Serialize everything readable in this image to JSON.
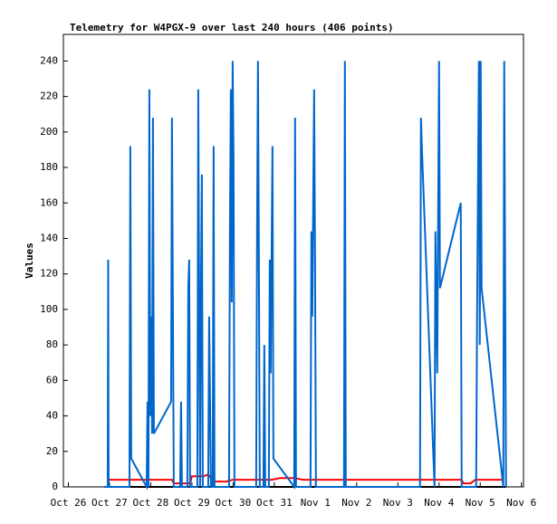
{
  "chart_data": {
    "type": "line",
    "title": "Telemetry for W4PGX-9 over last 240 hours (406 points)",
    "y_label": "Values",
    "xlim": [
      -0.12,
      11.05
    ],
    "xticks": [
      {
        "value": 0,
        "label": "Oct 26"
      },
      {
        "value": 1,
        "label": "Oct 27"
      },
      {
        "value": 2,
        "label": "Oct 28"
      },
      {
        "value": 3,
        "label": "Oct 29"
      },
      {
        "value": 4,
        "label": "Oct 30"
      },
      {
        "value": 5,
        "label": "Oct 31"
      },
      {
        "value": 6,
        "label": "Nov 1"
      },
      {
        "value": 7,
        "label": "Nov 2"
      },
      {
        "value": 8,
        "label": "Nov 3"
      },
      {
        "value": 9,
        "label": "Nov 4"
      },
      {
        "value": 10,
        "label": "Nov 5"
      },
      {
        "value": 11,
        "label": "Nov 6"
      }
    ],
    "ylim": [
      0,
      255
    ],
    "yticks": [
      0,
      20,
      40,
      60,
      80,
      100,
      120,
      140,
      160,
      180,
      200,
      220,
      240
    ],
    "series": [
      {
        "color": "#000000",
        "x": [
          0.868,
          10.626
        ],
        "values": [
          0,
          0
        ]
      },
      {
        "color": "#ff0000",
        "x": [
          0.956,
          2.516,
          2.56,
          2.956,
          3.0,
          3.286,
          3.396,
          3.527,
          3.835,
          3.989,
          4.934,
          5.154,
          5.484,
          5.703,
          9.549,
          9.593,
          9.769,
          9.879,
          10.56
        ],
        "values": [
          4,
          4,
          2,
          2,
          6,
          6,
          7,
          3,
          3,
          4,
          4,
          5,
          5,
          4,
          4,
          2,
          2,
          4,
          4
        ]
      },
      {
        "color": "#0066cc",
        "x": [
          0.868,
          0.956,
          0.967,
          0.978,
          1.484,
          1.505,
          1.527,
          1.901,
          1.923,
          1.945,
          1.967,
          1.989,
          2.011,
          2.033,
          2.055,
          2.077,
          2.495,
          2.516,
          2.538,
          2.56,
          2.714,
          2.736,
          2.758,
          2.89,
          2.912,
          2.934,
          2.956,
          3.132,
          3.154,
          3.176,
          3.198,
          3.22,
          3.242,
          3.264,
          3.396,
          3.418,
          3.44,
          3.462,
          3.505,
          3.527,
          3.549,
          3.901,
          3.923,
          3.945,
          3.967,
          3.989,
          4.011,
          4.033,
          4.56,
          4.582,
          4.604,
          4.626,
          4.648,
          4.736,
          4.758,
          4.78,
          4.868,
          4.89,
          4.912,
          4.956,
          4.978,
          5.484,
          5.505,
          5.527,
          5.879,
          5.901,
          5.923,
          5.967,
          5.989,
          6.011,
          6.692,
          6.714,
          6.736,
          8.538,
          8.56,
          8.582,
          8.89,
          8.912,
          8.956,
          9.0,
          9.022,
          9.527,
          9.549,
          9.901,
          9.923,
          9.967,
          9.989,
          10.011,
          10.033,
          10.56,
          10.582,
          10.604,
          10.626
        ],
        "values": [
          0,
          0,
          128,
          0,
          0,
          192,
          16,
          0,
          48,
          0,
          224,
          40,
          96,
          30,
          208,
          30,
          48,
          208,
          104,
          0,
          0,
          48,
          0,
          0,
          112,
          128,
          0,
          0,
          224,
          112,
          0,
          112,
          176,
          0,
          0,
          96,
          48,
          0,
          0,
          192,
          0,
          0,
          144,
          224,
          104,
          240,
          184,
          0,
          0,
          144,
          240,
          128,
          0,
          0,
          80,
          0,
          0,
          128,
          64,
          192,
          16,
          0,
          208,
          0,
          0,
          144,
          96,
          224,
          128,
          0,
          0,
          240,
          0,
          0,
          208,
          192,
          0,
          144,
          64,
          240,
          112,
          160,
          0,
          0,
          96,
          240,
          80,
          240,
          112,
          0,
          240,
          120,
          0
        ]
      }
    ]
  }
}
